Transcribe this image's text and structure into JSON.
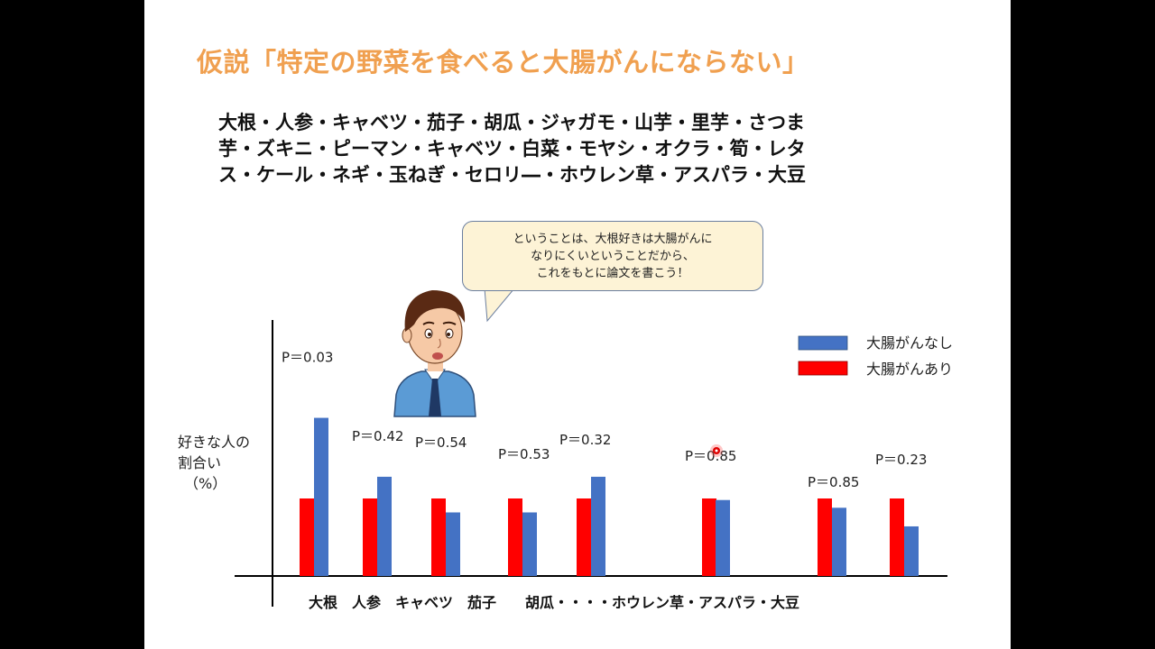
{
  "title": "仮説「特定の野菜を食べると大腸がんにならない」",
  "veg_list_lines": [
    "大根・人参・キャベツ・茄子・胡瓜・ジャガモ・山芋・里芋・さつま",
    "芋・ズキニ・ピーマン・キャベツ・白菜・モヤシ・オクラ・筍・レタ",
    "ス・ケール・ネギ・玉ねぎ・セロリ―・ホウレン草・アスパラ・大豆"
  ],
  "bubble_lines": [
    "ということは、大根好きは大腸がんに",
    "なりにくいということだから、",
    "これをもとに論文を書こう！"
  ],
  "colors": {
    "no_cancer": "#4472C4",
    "cancer": "#FF0000",
    "title": "#F0A050",
    "pointer": "#E00000"
  },
  "chart_data": {
    "type": "bar",
    "ylabel_lines": [
      "好きな人の",
      "割合い",
      "（%）"
    ],
    "bottom_label": "大根　人参　キャベツ　茄子　　胡瓜・・・・ホウレン草・アスパラ・大豆",
    "series": [
      {
        "name": "大腸がんあり",
        "color": "#FF0000",
        "values": [
          50,
          50,
          50,
          50,
          50,
          50,
          50,
          50
        ]
      },
      {
        "name": "大腸がんなし",
        "color": "#4472C4",
        "values": [
          102,
          64,
          41,
          41,
          64,
          49,
          44,
          32
        ]
      }
    ],
    "p_values": [
      "P＝0.03",
      "P＝0.42",
      "P＝0.54",
      "P＝0.53",
      "P＝0.32",
      "P＝0.85",
      "P＝0.85",
      "P＝0.23"
    ],
    "ylim": [
      0,
      120
    ],
    "legend": [
      {
        "name": "大腸がんなし",
        "color": "#4472C4"
      },
      {
        "name": "大腸がんあり",
        "color": "#FF0000"
      }
    ],
    "legend_position": "top-right",
    "grid": false
  }
}
